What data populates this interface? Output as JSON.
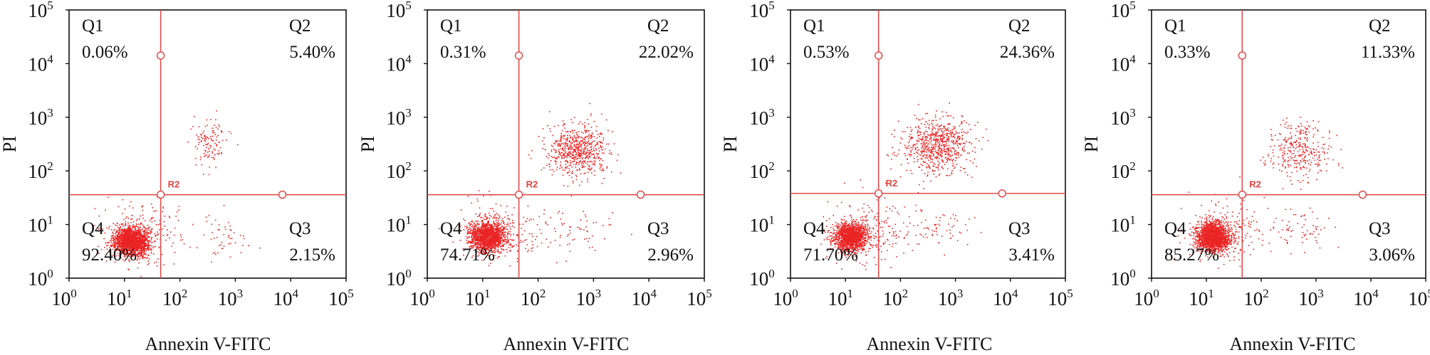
{
  "colors": {
    "dots": "#ea2424",
    "gate": "#df4c4c",
    "frame": "#111111"
  },
  "marker_label": "R2",
  "x_label": "Annexin V-FITC",
  "y_label": "PI",
  "axis_tick_labels": [
    "10",
    "10",
    "10",
    "10",
    "10",
    "10"
  ],
  "axis_tick_exponents": [
    "0",
    "1",
    "2",
    "3",
    "4",
    "5"
  ],
  "chart_data": [
    {
      "type": "scatter",
      "xlabel": "Annexin V-FITC",
      "ylabel": "PI",
      "x_scale": "log",
      "y_scale": "log",
      "xlim": [
        1,
        100000
      ],
      "ylim": [
        1,
        100000
      ],
      "gate": {
        "x": 45,
        "y": 36,
        "label": "R2"
      },
      "quadrants": [
        {
          "name": "Q1",
          "label": "Q1",
          "value": "0.06%"
        },
        {
          "name": "Q2",
          "label": "Q2",
          "value": "5.40%"
        },
        {
          "name": "Q3",
          "label": "Q3",
          "value": "2.15%"
        },
        {
          "name": "Q4",
          "label": "Q4",
          "value": "92.40%"
        }
      ],
      "populations": [
        {
          "cx": 13,
          "cy": 5,
          "sx": 0.15,
          "sy": 0.13,
          "n": 1900
        },
        {
          "cx": 20,
          "cy": 7,
          "sx": 0.35,
          "sy": 0.3,
          "n": 220
        },
        {
          "cx": 350,
          "cy": 320,
          "sx": 0.16,
          "sy": 0.22,
          "n": 120
        },
        {
          "cx": 600,
          "cy": 6,
          "sx": 0.3,
          "sy": 0.2,
          "n": 50
        }
      ]
    },
    {
      "type": "scatter",
      "xlabel": "Annexin V-FITC",
      "ylabel": "PI",
      "x_scale": "log",
      "y_scale": "log",
      "xlim": [
        1,
        100000
      ],
      "ylim": [
        1,
        100000
      ],
      "gate": {
        "x": 45,
        "y": 36,
        "label": "R2"
      },
      "quadrants": [
        {
          "name": "Q1",
          "label": "Q1",
          "value": "0.31%"
        },
        {
          "name": "Q2",
          "label": "Q2",
          "value": "22.02%"
        },
        {
          "name": "Q3",
          "label": "Q3",
          "value": "2.96%"
        },
        {
          "name": "Q4",
          "label": "Q4",
          "value": "74.71%"
        }
      ],
      "populations": [
        {
          "cx": 12,
          "cy": 6,
          "sx": 0.16,
          "sy": 0.14,
          "n": 1500
        },
        {
          "cx": 20,
          "cy": 8,
          "sx": 0.35,
          "sy": 0.3,
          "n": 200
        },
        {
          "cx": 500,
          "cy": 250,
          "sx": 0.28,
          "sy": 0.24,
          "n": 650
        },
        {
          "cx": 400,
          "cy": 8,
          "sx": 0.35,
          "sy": 0.2,
          "n": 70
        }
      ]
    },
    {
      "type": "scatter",
      "xlabel": "Annexin V-FITC",
      "ylabel": "PI",
      "x_scale": "log",
      "y_scale": "log",
      "xlim": [
        1,
        100000
      ],
      "ylim": [
        1,
        100000
      ],
      "gate": {
        "x": 40,
        "y": 38,
        "label": "R2"
      },
      "quadrants": [
        {
          "name": "Q1",
          "label": "Q1",
          "value": "0.53%"
        },
        {
          "name": "Q2",
          "label": "Q2",
          "value": "24.36%"
        },
        {
          "name": "Q3",
          "label": "Q3",
          "value": "3.41%"
        },
        {
          "name": "Q4",
          "label": "Q4",
          "value": "71.70%"
        }
      ],
      "populations": [
        {
          "cx": 12,
          "cy": 6,
          "sx": 0.16,
          "sy": 0.14,
          "n": 1400
        },
        {
          "cx": 20,
          "cy": 8,
          "sx": 0.35,
          "sy": 0.3,
          "n": 200
        },
        {
          "cx": 450,
          "cy": 300,
          "sx": 0.3,
          "sy": 0.26,
          "n": 700
        },
        {
          "cx": 400,
          "cy": 8,
          "sx": 0.35,
          "sy": 0.2,
          "n": 80
        }
      ]
    },
    {
      "type": "scatter",
      "xlabel": "Annexin V-FITC",
      "ylabel": "PI",
      "x_scale": "log",
      "y_scale": "log",
      "xlim": [
        1,
        100000
      ],
      "ylim": [
        1,
        100000
      ],
      "gate": {
        "x": 45,
        "y": 36,
        "label": "R2"
      },
      "quadrants": [
        {
          "name": "Q1",
          "label": "Q1",
          "value": "0.33%"
        },
        {
          "name": "Q2",
          "label": "Q2",
          "value": "11.33%"
        },
        {
          "name": "Q3",
          "label": "Q3",
          "value": "3.06%"
        },
        {
          "name": "Q4",
          "label": "Q4",
          "value": "85.27%"
        }
      ],
      "populations": [
        {
          "cx": 13,
          "cy": 6,
          "sx": 0.15,
          "sy": 0.13,
          "n": 1700
        },
        {
          "cx": 20,
          "cy": 8,
          "sx": 0.35,
          "sy": 0.3,
          "n": 200
        },
        {
          "cx": 450,
          "cy": 250,
          "sx": 0.3,
          "sy": 0.26,
          "n": 330
        },
        {
          "cx": 500,
          "cy": 8,
          "sx": 0.35,
          "sy": 0.2,
          "n": 70
        }
      ]
    }
  ]
}
